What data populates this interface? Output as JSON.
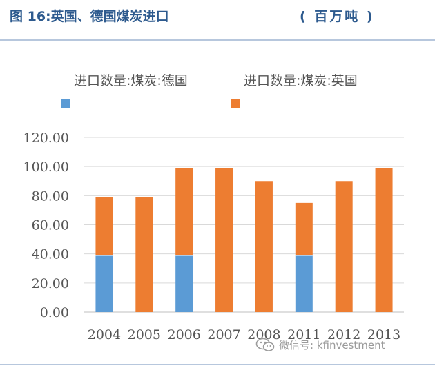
{
  "header": {
    "title": "图 16:英国、德国煤炭进口",
    "unit": "( 百万吨 )"
  },
  "watermark": {
    "text": "微信号: kfinvestment",
    "icon": "wechat-icon"
  },
  "colors": {
    "germany": "#5b9bd5",
    "uk": "#ed7d31",
    "title": "#2d5a8e",
    "rule": "#b7c7dd"
  },
  "chart_data": {
    "type": "bar",
    "stacked": true,
    "categories": [
      "2004",
      "2005",
      "2006",
      "2007",
      "2008",
      "2011",
      "2012",
      "2013"
    ],
    "series": [
      {
        "name": "进口数量:煤炭:德国",
        "values": [
          39,
          0,
          39,
          0,
          0,
          39,
          0,
          0
        ]
      },
      {
        "name": "进口数量:煤炭:英国",
        "values": [
          40,
          79,
          60,
          99,
          90,
          36,
          90,
          99
        ]
      }
    ],
    "ylim": [
      0,
      120
    ],
    "yticks": [
      "0.00",
      "20.00",
      "40.00",
      "60.00",
      "80.00",
      "100.00",
      "120.00"
    ],
    "grid": true,
    "legend": "top"
  }
}
